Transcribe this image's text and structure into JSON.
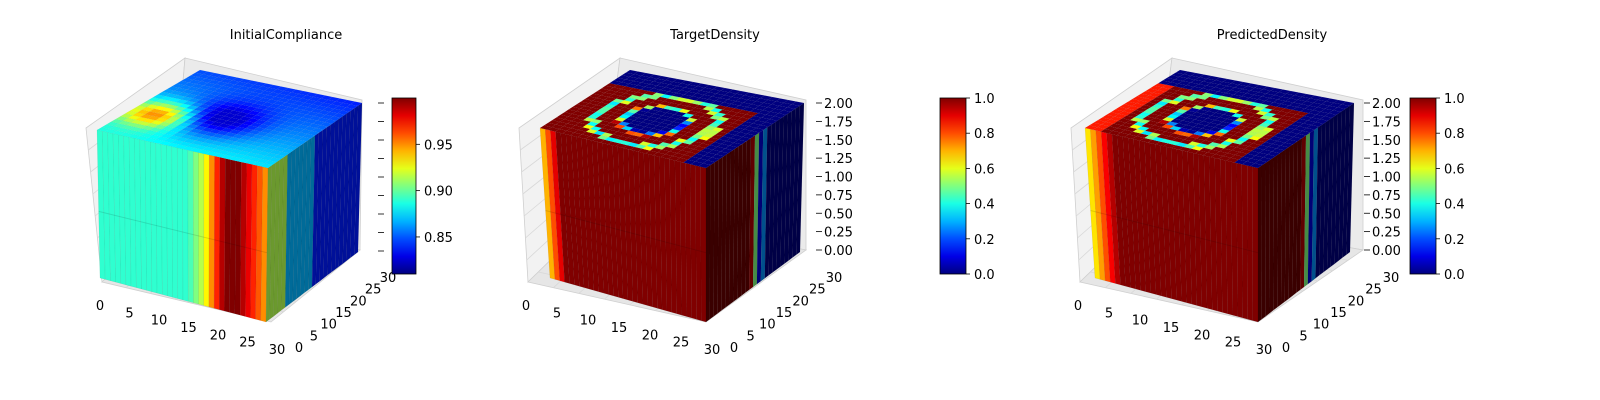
{
  "chart_data": [
    {
      "type": "3d-voxel-cube",
      "title": "InitialCompliance",
      "colormap": "jet",
      "x_ticks": [
        "0",
        "5",
        "10",
        "15",
        "20",
        "25",
        "30"
      ],
      "y_ticks": [
        "0",
        "5",
        "10",
        "15",
        "20",
        "25",
        "30"
      ],
      "z_ticks": [],
      "colorbar": {
        "min": 0.81,
        "max": 1.0,
        "ticks": [
          "0.85",
          "0.90",
          "0.95"
        ]
      },
      "front_face_profile": [
        0.89,
        0.89,
        0.89,
        0.89,
        0.89,
        0.89,
        0.89,
        0.89,
        0.89,
        0.89,
        0.89,
        0.89,
        0.89,
        0.89,
        0.89,
        0.89,
        0.89,
        0.895,
        0.905,
        0.915,
        0.93,
        0.95,
        0.97,
        0.99,
        1.0,
        1.0,
        1.0,
        0.99,
        0.98,
        0.97,
        0.96,
        0.95
      ]
    },
    {
      "type": "3d-voxel-cube",
      "title": "TargetDensity",
      "colormap": "jet",
      "x_ticks": [
        "0",
        "5",
        "10",
        "15",
        "20",
        "25",
        "30"
      ],
      "y_ticks": [
        "0",
        "5",
        "10",
        "15",
        "20",
        "25",
        "30"
      ],
      "z_ticks": [
        "0.00",
        "0.25",
        "0.50",
        "0.75",
        "1.00",
        "1.25",
        "1.50",
        "1.75",
        "2.00"
      ],
      "colorbar": {
        "min": 0.0,
        "max": 1.0,
        "ticks": [
          "0.0",
          "0.2",
          "0.4",
          "0.6",
          "0.8",
          "1.0"
        ]
      },
      "front_face_profile": [
        0.7,
        0.8,
        0.9,
        1.0,
        1.0,
        1.0,
        1.0,
        1.0,
        1.0,
        1.0,
        1.0,
        1.0,
        1.0,
        1.0,
        1.0,
        1.0,
        1.0,
        1.0,
        1.0,
        1.0,
        1.0,
        1.0,
        1.0,
        1.0,
        1.0,
        1.0,
        1.0,
        1.0,
        1.0,
        1.0,
        1.0,
        1.0
      ]
    },
    {
      "type": "3d-voxel-cube",
      "title": "PredictedDensity",
      "colormap": "jet",
      "x_ticks": [
        "0",
        "5",
        "10",
        "15",
        "20",
        "25",
        "30"
      ],
      "y_ticks": [
        "0",
        "5",
        "10",
        "15",
        "20",
        "25",
        "30"
      ],
      "z_ticks": [
        "0.00",
        "0.25",
        "0.50",
        "0.75",
        "1.00",
        "1.25",
        "1.50",
        "1.75",
        "2.00"
      ],
      "colorbar": {
        "min": 0.0,
        "max": 1.0,
        "ticks": [
          "0.0",
          "0.2",
          "0.4",
          "0.6",
          "0.8",
          "1.0"
        ]
      },
      "front_face_profile": [
        0.65,
        0.72,
        0.8,
        0.88,
        0.95,
        1.0,
        1.0,
        1.0,
        1.0,
        1.0,
        1.0,
        1.0,
        1.0,
        1.0,
        1.0,
        1.0,
        1.0,
        1.0,
        1.0,
        1.0,
        1.0,
        1.0,
        1.0,
        1.0,
        1.0,
        1.0,
        1.0,
        1.0,
        1.0,
        1.0,
        1.0,
        1.0
      ]
    }
  ]
}
